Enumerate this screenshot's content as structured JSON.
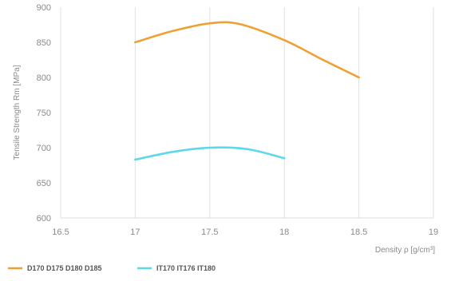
{
  "chart_data": {
    "type": "line",
    "xlabel": "Density ρ [g/cm³]",
    "ylabel": "Tensile Strength Rm [MPa]",
    "xlim": [
      16.5,
      19
    ],
    "ylim": [
      600,
      900
    ],
    "x_ticks": [
      "16.5",
      "17",
      "17.5",
      "18",
      "18.5",
      "19"
    ],
    "y_ticks": [
      "600",
      "650",
      "700",
      "750",
      "800",
      "850",
      "900"
    ],
    "grid": "vertical lines only",
    "legend_position": "bottom-left",
    "series": [
      {
        "name": "D170 D175 D180 D185",
        "color": "#f0a030",
        "points": [
          [
            17.0,
            850
          ],
          [
            17.25,
            866
          ],
          [
            17.5,
            877
          ],
          [
            17.7,
            876
          ],
          [
            18.0,
            853
          ],
          [
            18.25,
            826
          ],
          [
            18.5,
            800
          ]
        ]
      },
      {
        "name": "IT170 IT176 IT180",
        "color": "#5cd8ec",
        "points": [
          [
            17.0,
            683
          ],
          [
            17.25,
            694
          ],
          [
            17.5,
            700
          ],
          [
            17.75,
            698
          ],
          [
            18.0,
            685
          ]
        ]
      }
    ]
  }
}
